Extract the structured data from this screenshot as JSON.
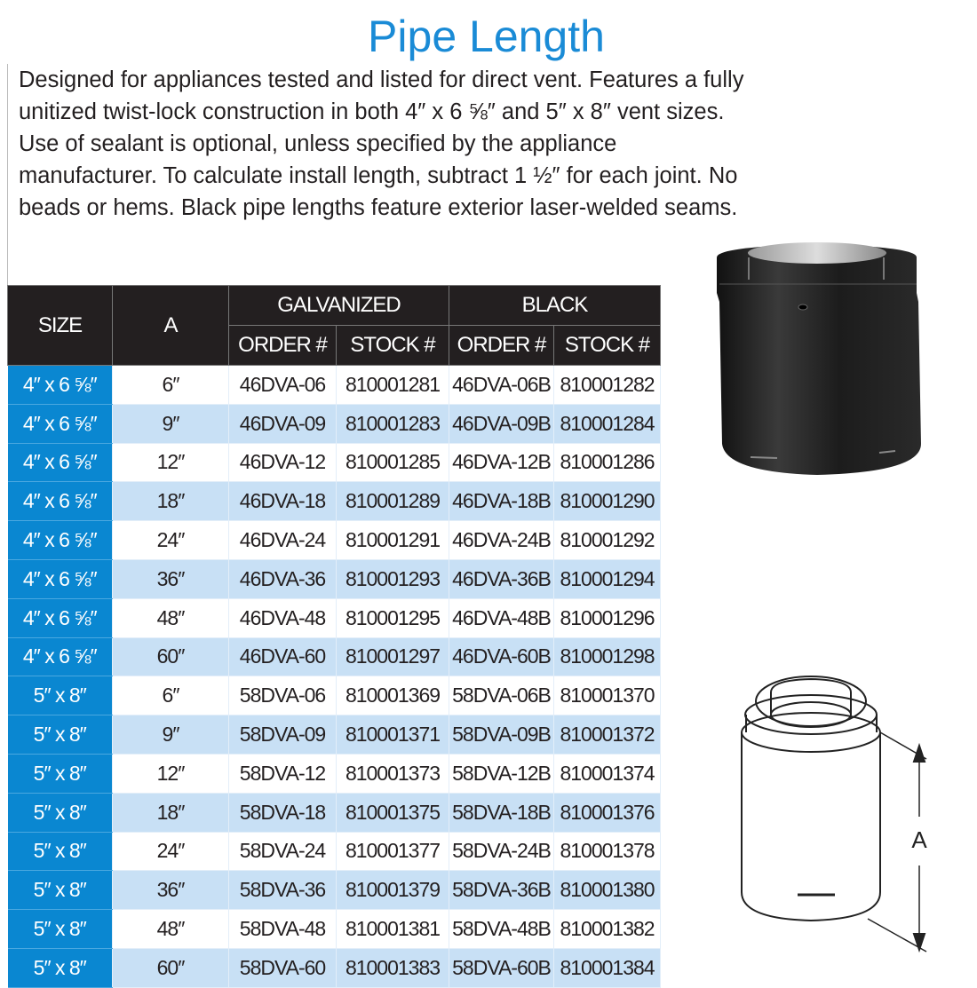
{
  "title": "Pipe Length",
  "description": "Designed for appliances tested and listed for direct vent. Features a fully unitized twist-lock construction in both 4″ x 6 ⅝″ and 5″ x 8″ vent sizes.  Use of sealant is optional, unless specified by the appliance manufacturer. To calculate install length, subtract 1 ½″ for each joint.  No beads or hems. Black pipe lengths feature exterior laser-welded seams.",
  "table": {
    "headers": {
      "size": "SIZE",
      "a": "A",
      "galvanized": "GALVANIZED",
      "black": "BLACK",
      "order": "ORDER #",
      "stock": "STOCK #"
    },
    "rows": [
      [
        "4″ x 6 ⅝″",
        "6″",
        "46DVA-06",
        "810001281",
        "46DVA-06B",
        "810001282"
      ],
      [
        "4″ x 6 ⅝″",
        "9″",
        "46DVA-09",
        "810001283",
        "46DVA-09B",
        "810001284"
      ],
      [
        "4″ x 6 ⅝″",
        "12″",
        "46DVA-12",
        "810001285",
        "46DVA-12B",
        "810001286"
      ],
      [
        "4″ x 6 ⅝″",
        "18″",
        "46DVA-18",
        "810001289",
        "46DVA-18B",
        "810001290"
      ],
      [
        "4″ x 6 ⅝″",
        "24″",
        "46DVA-24",
        "810001291",
        "46DVA-24B",
        "810001292"
      ],
      [
        "4″ x 6 ⅝″",
        "36″",
        "46DVA-36",
        "810001293",
        "46DVA-36B",
        "810001294"
      ],
      [
        "4″ x 6 ⅝″",
        "48″",
        "46DVA-48",
        "810001295",
        "46DVA-48B",
        "810001296"
      ],
      [
        "4″ x 6 ⅝″",
        "60″",
        "46DVA-60",
        "810001297",
        "46DVA-60B",
        "810001298"
      ],
      [
        "5″ x 8″",
        "6″",
        "58DVA-06",
        "810001369",
        "58DVA-06B",
        "810001370"
      ],
      [
        "5″ x 8″",
        "9″",
        "58DVA-09",
        "810001371",
        "58DVA-09B",
        "810001372"
      ],
      [
        "5″ x 8″",
        "12″",
        "58DVA-12",
        "810001373",
        "58DVA-12B",
        "810001374"
      ],
      [
        "5″ x 8″",
        "18″",
        "58DVA-18",
        "810001375",
        "58DVA-18B",
        "810001376"
      ],
      [
        "5″ x 8″",
        "24″",
        "58DVA-24",
        "810001377",
        "58DVA-24B",
        "810001378"
      ],
      [
        "5″ x 8″",
        "36″",
        "58DVA-36",
        "810001379",
        "58DVA-36B",
        "810001380"
      ],
      [
        "5″ x 8″",
        "48″",
        "58DVA-48",
        "810001381",
        "58DVA-48B",
        "810001382"
      ],
      [
        "5″ x 8″",
        "60″",
        "58DVA-60",
        "810001383",
        "58DVA-60B",
        "810001384"
      ]
    ]
  },
  "diagram": {
    "dimension_label": "A"
  },
  "colors": {
    "accent": "#1a8bd6",
    "size_cell": "#0a87d1",
    "row_alt": "#c8e0f5",
    "header": "#231f20"
  }
}
